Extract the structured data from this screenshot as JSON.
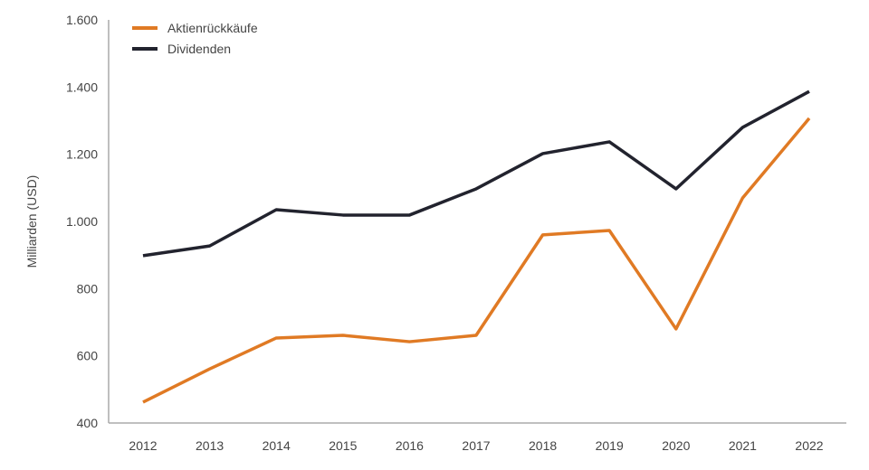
{
  "chart_data": {
    "type": "line",
    "title": "",
    "xlabel": "",
    "ylabel": "Milliarden (USD)",
    "x": [
      "2012",
      "2013",
      "2014",
      "2015",
      "2016",
      "2017",
      "2018",
      "2019",
      "2020",
      "2021",
      "2022"
    ],
    "ylim": [
      400,
      1600
    ],
    "yticks": [
      400,
      600,
      800,
      1000,
      1200,
      1400,
      1600
    ],
    "ytick_labels": [
      "400",
      "600",
      "800",
      "1.000",
      "1.200",
      "1.400",
      "1.600"
    ],
    "grid": false,
    "legend_position": "top-left",
    "series": [
      {
        "name": "Aktienrückkäufe",
        "color": "#e07a24",
        "values": [
          462,
          561,
          653,
          661,
          642,
          661,
          960,
          973,
          680,
          1070,
          1307
        ]
      },
      {
        "name": "Dividenden",
        "color": "#22232e",
        "values": [
          898,
          927,
          1035,
          1019,
          1019,
          1097,
          1202,
          1237,
          1097,
          1280,
          1387
        ]
      }
    ]
  }
}
